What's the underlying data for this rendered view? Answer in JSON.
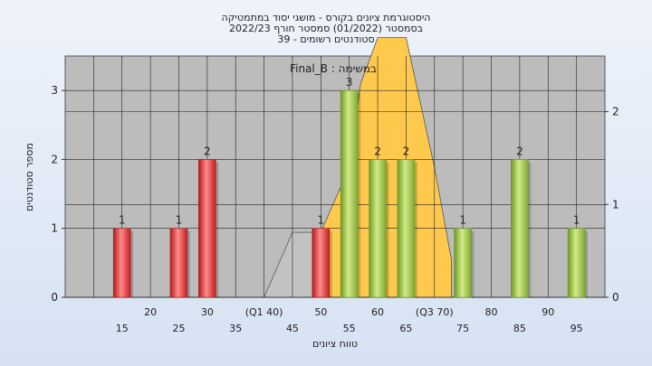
{
  "chart_data": {
    "type": "bar",
    "title_lines": [
      "היסטוגרמת ציונים בקורס - מושגי יסוד במתמטיקה",
      "בסמסטר  (01/2022)  סמסטר חורף 2022/23",
      "סטודנטים רשומים - 39"
    ],
    "legend_label": "Final_B : במשימה",
    "xlabel": "טווח ציונים",
    "ylabel": "מספר סטודנטים",
    "ylim": [
      0,
      3.5
    ],
    "yticks": [
      0,
      1,
      2,
      3
    ],
    "y2lim": [
      0,
      2.6
    ],
    "y2ticks": [
      0,
      1,
      2
    ],
    "xlim": [
      5,
      100
    ],
    "x_tick_labels_row1": [
      {
        "x": 20,
        "label": "20"
      },
      {
        "x": 30,
        "label": "30"
      },
      {
        "x": 40,
        "label": "(Q1 40)"
      },
      {
        "x": 50,
        "label": "50"
      },
      {
        "x": 60,
        "label": "60"
      },
      {
        "x": 70,
        "label": "(Q3 70)"
      },
      {
        "x": 80,
        "label": "80"
      },
      {
        "x": 90,
        "label": "90"
      }
    ],
    "x_tick_labels_row2": [
      {
        "x": 15,
        "label": "15"
      },
      {
        "x": 25,
        "label": "25"
      },
      {
        "x": 35,
        "label": "35"
      },
      {
        "x": 45,
        "label": "45"
      },
      {
        "x": 55,
        "label": "55"
      },
      {
        "x": 65,
        "label": "65"
      },
      {
        "x": 75,
        "label": "75"
      },
      {
        "x": 85,
        "label": "85"
      },
      {
        "x": 95,
        "label": "95"
      }
    ],
    "bars": [
      {
        "x": 15,
        "value": 1,
        "color": "red"
      },
      {
        "x": 25,
        "value": 1,
        "color": "red"
      },
      {
        "x": 30,
        "value": 2,
        "color": "red"
      },
      {
        "x": 50,
        "value": 1,
        "color": "red"
      },
      {
        "x": 55,
        "value": 3,
        "color": "green"
      },
      {
        "x": 60,
        "value": 2,
        "color": "green"
      },
      {
        "x": 65,
        "value": 2,
        "color": "green"
      },
      {
        "x": 75,
        "value": 1,
        "color": "green"
      },
      {
        "x": 85,
        "value": 2,
        "color": "green"
      },
      {
        "x": 95,
        "value": 1,
        "color": "green"
      }
    ],
    "area_series": [
      {
        "name": "low",
        "color": "#c2c2c2",
        "points": [
          [
            40,
            0
          ],
          [
            45,
            0.7
          ],
          [
            50,
            0.7
          ]
        ]
      },
      {
        "name": "mid",
        "color": "#ffc94d",
        "points": [
          [
            50,
            0.7
          ],
          [
            55,
            1.4
          ],
          [
            57,
            2.3
          ],
          [
            60,
            2.8
          ],
          [
            65,
            2.8
          ],
          [
            70,
            1.4
          ],
          [
            73,
            0.4
          ]
        ]
      }
    ],
    "colors": {
      "red": "#dd2a2a",
      "red_light": "#ff8a8a",
      "green": "#8ab43a",
      "green_light": "#d2eb8a",
      "plot_bg": "#bcbcbc",
      "grid": "#000000"
    }
  }
}
